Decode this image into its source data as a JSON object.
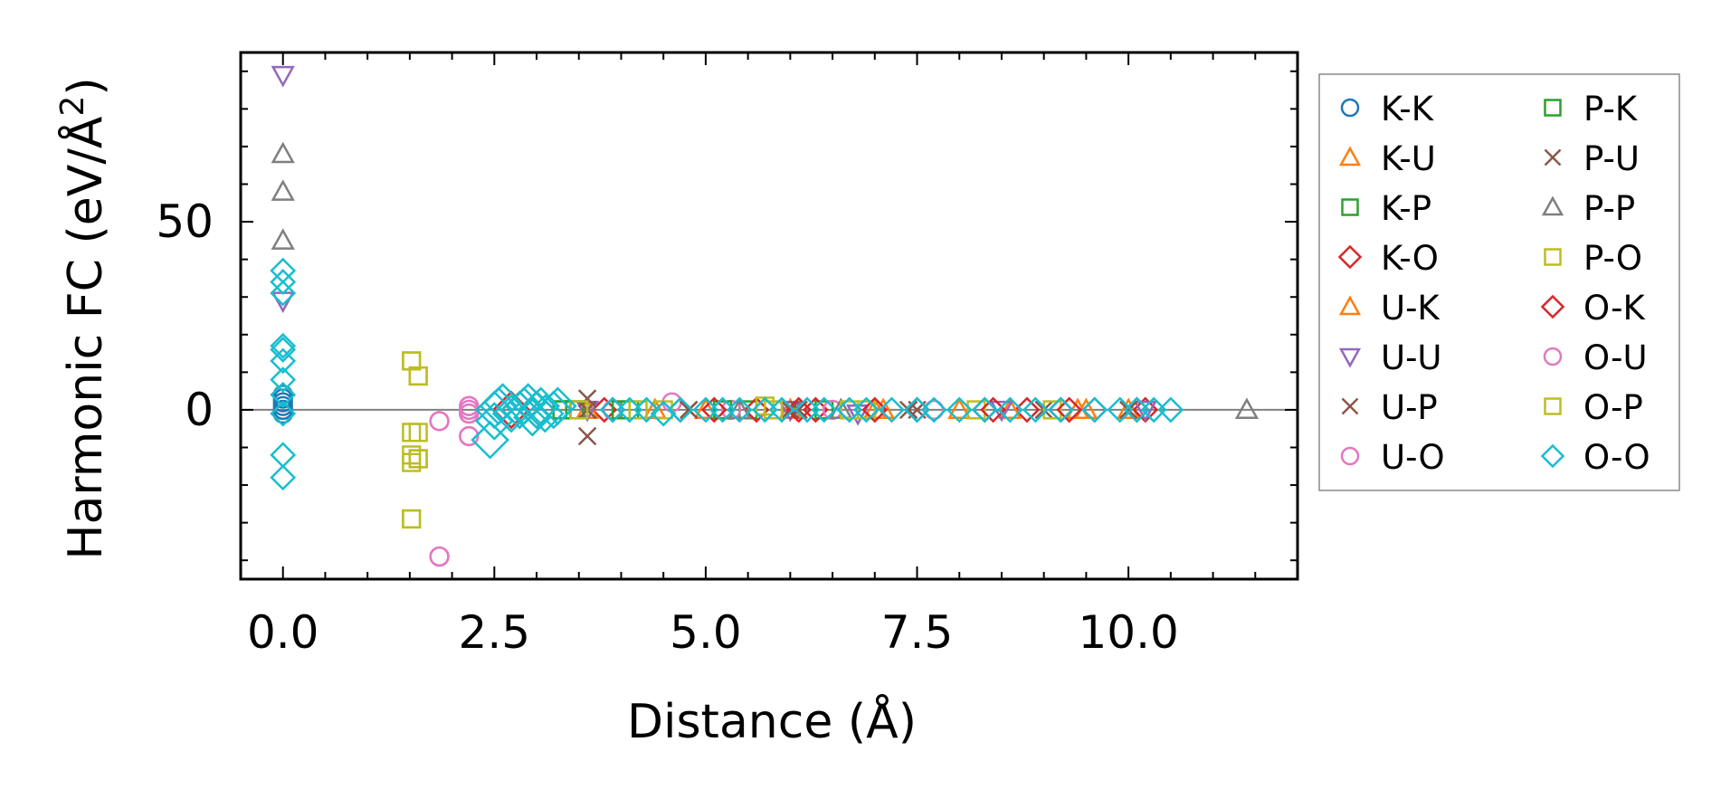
{
  "chart_data": {
    "type": "scatter",
    "xlabel": "Distance (Å)",
    "ylabel": "Harmonic FC (eV/Å²)",
    "ylabel_main": "Harmonic FC (eV/Å",
    "ylabel_sup": "2",
    "ylabel_close": ")",
    "xlim": [
      -0.5,
      12.0
    ],
    "ylim": [
      -45,
      95
    ],
    "xticks": [
      0.0,
      2.5,
      5.0,
      7.5,
      10.0
    ],
    "xtick_labels": [
      "0.0",
      "2.5",
      "5.0",
      "7.5",
      "10.0"
    ],
    "yticks": [
      0,
      50
    ],
    "ytick_labels": [
      "0",
      "50"
    ],
    "reference_line_y": 0,
    "legend_position": "outside-right",
    "series": [
      {
        "name": "K-K",
        "marker": "circle",
        "color": "#1f77b4",
        "points": [
          [
            0,
            0
          ],
          [
            0,
            1
          ],
          [
            0,
            2
          ],
          [
            0,
            3
          ],
          [
            0,
            -1
          ],
          [
            0,
            4
          ]
        ]
      },
      {
        "name": "K-U",
        "marker": "triangle-up",
        "color": "#ff7f0e",
        "points": [
          [
            3.6,
            0
          ],
          [
            4.4,
            0
          ],
          [
            6.0,
            0
          ],
          [
            7.0,
            0
          ],
          [
            8.0,
            0
          ],
          [
            9.4,
            0
          ],
          [
            10.0,
            0
          ]
        ]
      },
      {
        "name": "K-P",
        "marker": "square",
        "color": "#2ca02c",
        "points": [
          [
            3.3,
            0
          ],
          [
            3.5,
            0
          ],
          [
            4.1,
            0
          ],
          [
            5.5,
            0
          ],
          [
            6.4,
            0
          ]
        ]
      },
      {
        "name": "K-O",
        "marker": "diamond",
        "color": "#d62728",
        "points": [
          [
            2.7,
            0
          ],
          [
            3.0,
            0
          ],
          [
            3.8,
            0
          ],
          [
            4.7,
            0
          ],
          [
            5.6,
            0
          ],
          [
            6.3,
            0
          ],
          [
            7.5,
            0
          ],
          [
            8.3,
            0
          ],
          [
            8.8,
            0
          ],
          [
            9.2,
            0
          ],
          [
            9.6,
            0
          ],
          [
            10.2,
            0
          ]
        ]
      },
      {
        "name": "U-K",
        "marker": "triangle-up",
        "color": "#ff7f0e",
        "points": [
          [
            3.6,
            0
          ],
          [
            5.0,
            0
          ],
          [
            7.1,
            0
          ],
          [
            8.6,
            0
          ],
          [
            9.5,
            0
          ]
        ]
      },
      {
        "name": "U-U",
        "marker": "triangle-down",
        "color": "#9467bd",
        "points": [
          [
            0,
            89
          ],
          [
            0,
            29
          ],
          [
            3.6,
            0
          ],
          [
            6.0,
            0
          ],
          [
            6.8,
            -1
          ],
          [
            8.5,
            0
          ],
          [
            10.2,
            0
          ]
        ]
      },
      {
        "name": "U-P",
        "marker": "x",
        "color": "#8c564b",
        "points": [
          [
            3.6,
            3
          ],
          [
            3.6,
            -7
          ],
          [
            3.6,
            0
          ],
          [
            4.8,
            0
          ],
          [
            6.0,
            0
          ],
          [
            7.5,
            0
          ],
          [
            9.0,
            0
          ],
          [
            10.0,
            0
          ]
        ]
      },
      {
        "name": "U-O",
        "marker": "circle",
        "color": "#e377c2",
        "points": [
          [
            1.85,
            -3
          ],
          [
            1.85,
            -39
          ],
          [
            2.2,
            1
          ],
          [
            2.2,
            -1
          ],
          [
            2.2,
            -7
          ],
          [
            2.2,
            0
          ],
          [
            3.9,
            0
          ],
          [
            4.6,
            2
          ],
          [
            5.3,
            0
          ],
          [
            6.5,
            0
          ],
          [
            7.7,
            0
          ]
        ]
      },
      {
        "name": "P-K",
        "marker": "square",
        "color": "#2ca02c",
        "points": [
          [
            3.3,
            0
          ],
          [
            3.45,
            0
          ],
          [
            4.0,
            0
          ],
          [
            5.2,
            0
          ]
        ]
      },
      {
        "name": "P-U",
        "marker": "x",
        "color": "#8c564b",
        "points": [
          [
            3.6,
            0
          ],
          [
            4.8,
            0
          ],
          [
            6.1,
            0
          ],
          [
            7.4,
            0
          ]
        ]
      },
      {
        "name": "P-P",
        "marker": "triangle-up",
        "color": "#7f7f7f",
        "points": [
          [
            0,
            68
          ],
          [
            0,
            58
          ],
          [
            0,
            45
          ],
          [
            11.4,
            0
          ],
          [
            5.4,
            0
          ],
          [
            6.6,
            0
          ]
        ]
      },
      {
        "name": "P-O",
        "marker": "square",
        "color": "#bcbd22",
        "points": [
          [
            1.52,
            13
          ],
          [
            1.52,
            -6
          ],
          [
            1.52,
            -12
          ],
          [
            1.52,
            -14
          ],
          [
            1.52,
            -29
          ],
          [
            1.6,
            9
          ],
          [
            1.6,
            -6
          ],
          [
            1.6,
            -13
          ],
          [
            3.5,
            0
          ],
          [
            4.2,
            0
          ],
          [
            5.8,
            0
          ],
          [
            6.9,
            0
          ],
          [
            8.2,
            0
          ],
          [
            9.1,
            0
          ]
        ]
      },
      {
        "name": "O-K",
        "marker": "diamond",
        "color": "#d62728",
        "points": [
          [
            2.8,
            0
          ],
          [
            3.9,
            0
          ],
          [
            5.1,
            0
          ],
          [
            6.1,
            0
          ],
          [
            7.0,
            0
          ],
          [
            8.4,
            0
          ],
          [
            9.3,
            0
          ],
          [
            10.1,
            0
          ]
        ]
      },
      {
        "name": "O-U",
        "marker": "circle",
        "color": "#e377c2",
        "points": [
          [
            1.85,
            -3
          ],
          [
            1.85,
            -39
          ],
          [
            2.2,
            1
          ],
          [
            2.2,
            -1
          ],
          [
            2.2,
            -7
          ]
        ]
      },
      {
        "name": "O-P",
        "marker": "square",
        "color": "#bcbd22",
        "points": [
          [
            1.52,
            13
          ],
          [
            1.52,
            -29
          ],
          [
            1.6,
            9
          ],
          [
            1.6,
            -13
          ],
          [
            4.5,
            0
          ],
          [
            5.7,
            1
          ],
          [
            6.7,
            0
          ]
        ]
      },
      {
        "name": "O-O",
        "marker": "diamond",
        "color": "#17becf",
        "points": [
          [
            0,
            37
          ],
          [
            0,
            34
          ],
          [
            0,
            31
          ],
          [
            0,
            17
          ],
          [
            0,
            16
          ],
          [
            0,
            13
          ],
          [
            0,
            8
          ],
          [
            0,
            4
          ],
          [
            0,
            -1
          ],
          [
            0,
            -12
          ],
          [
            0,
            -18
          ],
          [
            2.45,
            -8
          ],
          [
            2.5,
            -3
          ],
          [
            2.5,
            0
          ],
          [
            2.55,
            1
          ],
          [
            2.6,
            2
          ],
          [
            2.7,
            -1
          ],
          [
            2.8,
            0
          ],
          [
            2.85,
            1
          ],
          [
            2.9,
            2
          ],
          [
            2.95,
            -2
          ],
          [
            3.0,
            0
          ],
          [
            3.05,
            1
          ],
          [
            3.1,
            -1
          ],
          [
            3.2,
            0
          ],
          [
            3.25,
            1
          ],
          [
            3.9,
            0
          ],
          [
            4.1,
            0
          ],
          [
            4.3,
            0
          ],
          [
            4.5,
            -1
          ],
          [
            4.7,
            0
          ],
          [
            5.0,
            0
          ],
          [
            5.2,
            0
          ],
          [
            5.4,
            0
          ],
          [
            5.7,
            0
          ],
          [
            5.9,
            0
          ],
          [
            6.2,
            0
          ],
          [
            6.4,
            0
          ],
          [
            6.7,
            0
          ],
          [
            6.9,
            0
          ],
          [
            7.2,
            0
          ],
          [
            7.5,
            0
          ],
          [
            7.7,
            0
          ],
          [
            8.0,
            0
          ],
          [
            8.3,
            0
          ],
          [
            8.6,
            0
          ],
          [
            8.9,
            0
          ],
          [
            9.2,
            0
          ],
          [
            9.6,
            0
          ],
          [
            9.9,
            0
          ],
          [
            10.1,
            0
          ],
          [
            10.3,
            0
          ],
          [
            10.5,
            0
          ]
        ]
      }
    ]
  }
}
